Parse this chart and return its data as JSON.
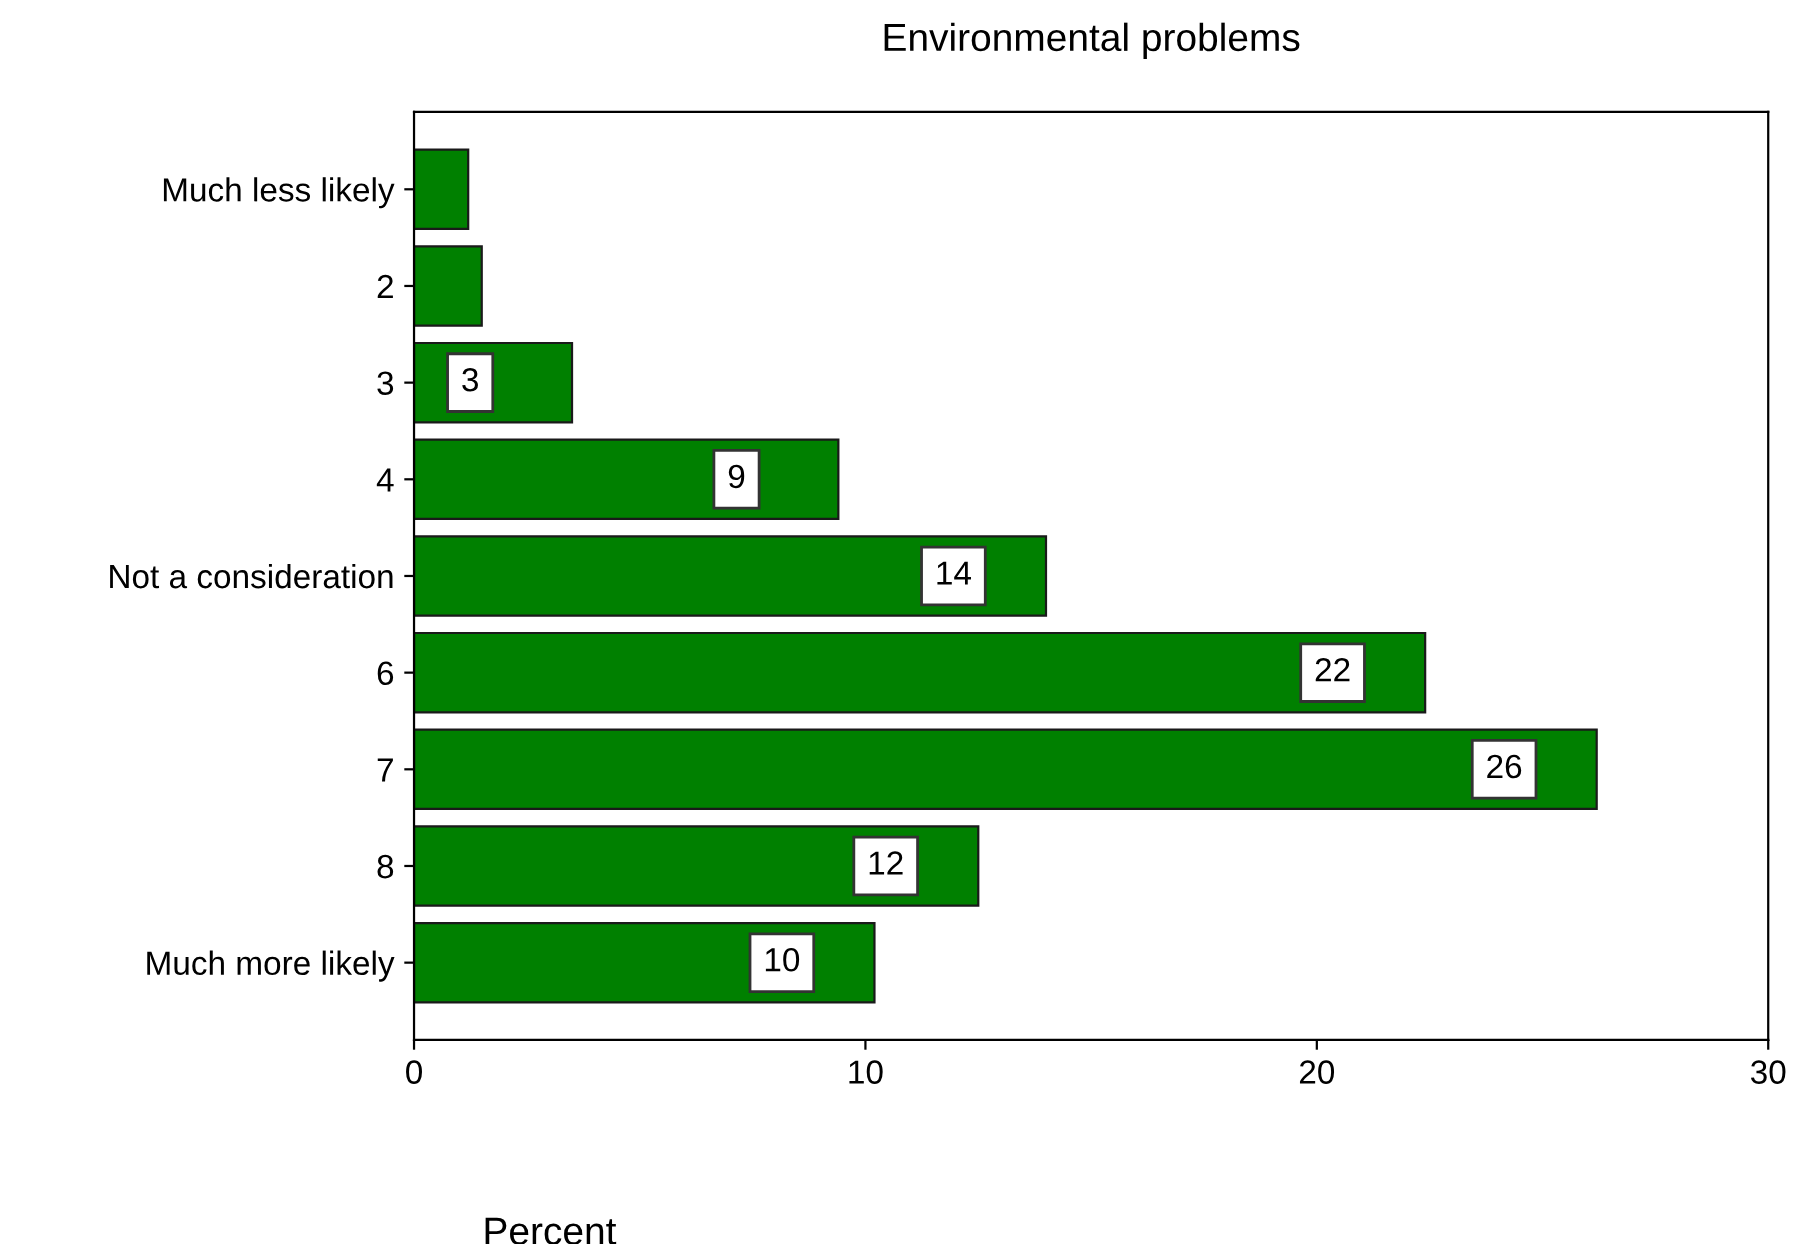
{
  "chart_data": {
    "type": "bar",
    "orientation": "horizontal",
    "title": "Environmental problems",
    "xlabel": "Percent",
    "categories": [
      "Much less likely",
      "2",
      "3",
      "4",
      "Not a consideration",
      "6",
      "7",
      "8",
      "Much more likely"
    ],
    "values": [
      1.2,
      1.5,
      3.5,
      9.4,
      14,
      22.4,
      26.2,
      12.5,
      10.2
    ],
    "value_labels": [
      null,
      null,
      "3",
      "9",
      "14",
      "22",
      "26",
      "12",
      "10"
    ],
    "color": "#008000",
    "xlim": [
      0,
      30
    ],
    "xticks": [
      0,
      10,
      20,
      30
    ],
    "grid": false,
    "legend": false
  }
}
